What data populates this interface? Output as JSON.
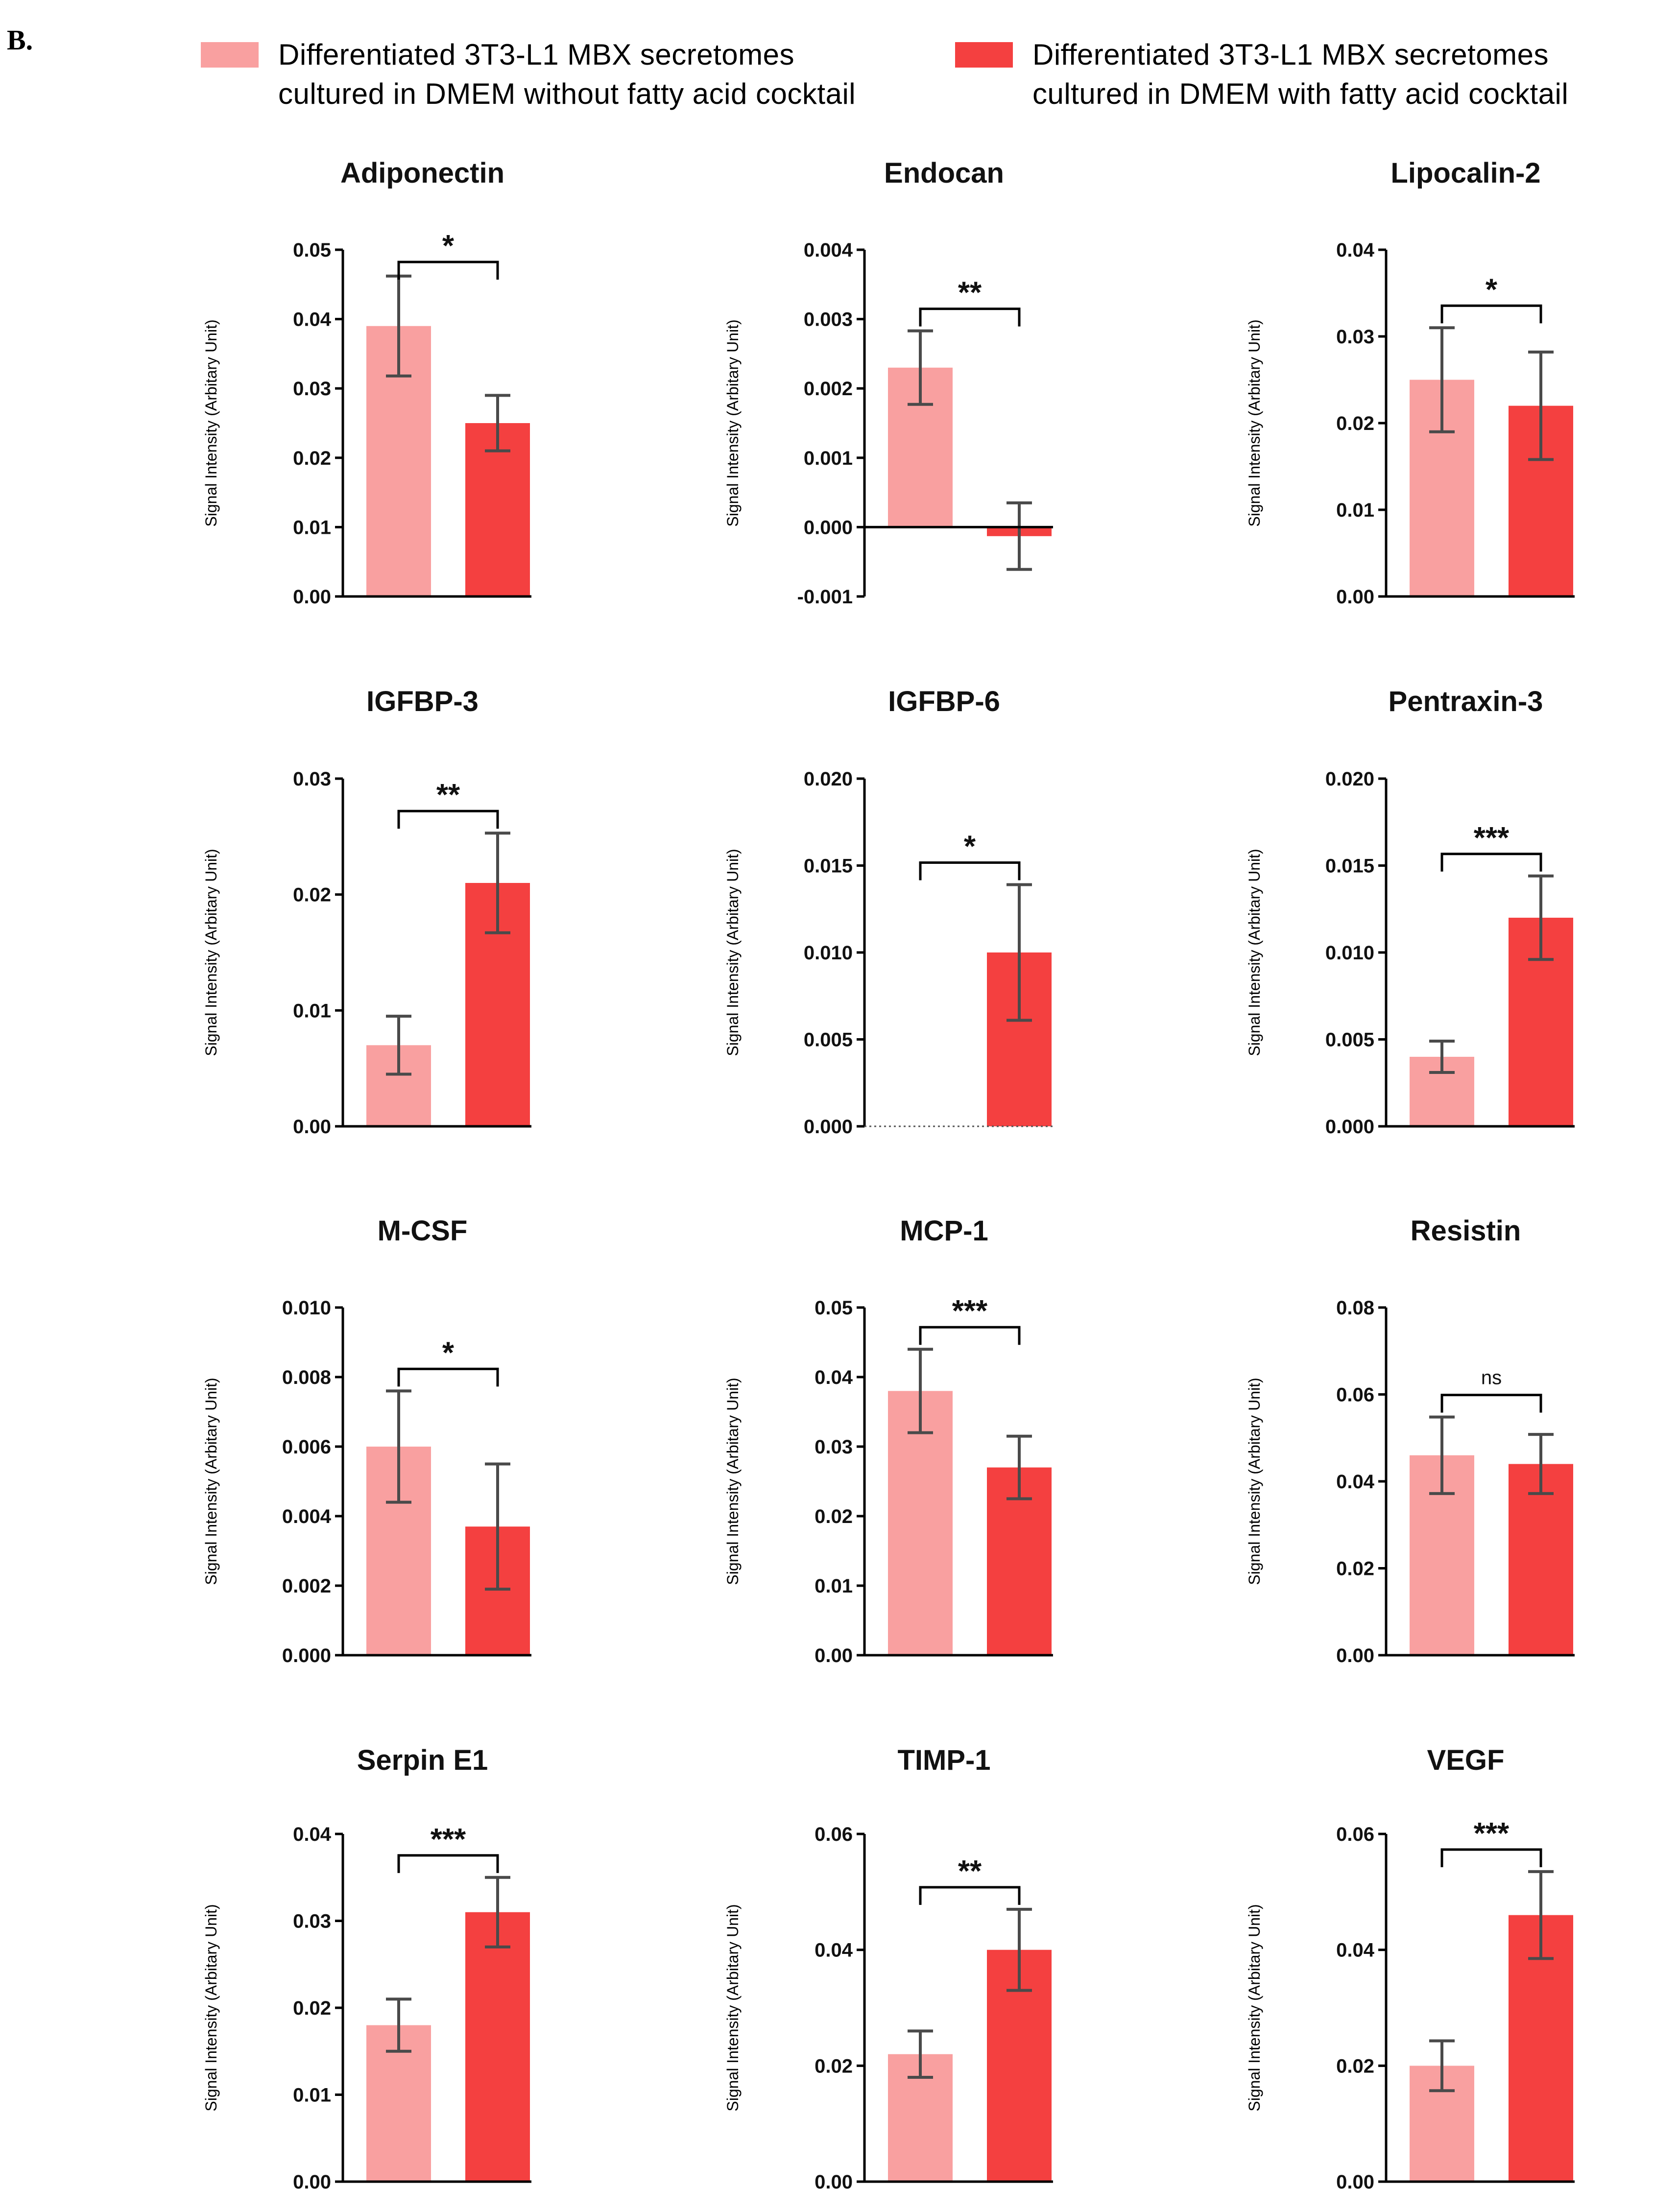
{
  "panel_label": "B.",
  "legend": [
    {
      "lines": [
        "Differentiated 3T3-L1 MBX secretomes",
        "cultured in DMEM without fatty acid cocktail"
      ],
      "color": "#f9a0a0"
    },
    {
      "lines": [
        "Differentiated 3T3-L1 MBX secretomes",
        "cultured in DMEM with fatty acid cocktail"
      ],
      "color": "#f44040"
    }
  ],
  "colors": {
    "without": "#f9a0a0",
    "with": "#f44040",
    "error_bar": "#4a4a4a"
  },
  "chart_data": [
    {
      "type": "bar",
      "title": "Adiponectin",
      "ylabel": "Signal Intensity (Arbitary Unit)",
      "categories": [
        "without fatty acid cocktail",
        "with fatty acid cocktail"
      ],
      "values": [
        0.039,
        0.025
      ],
      "errors": [
        0.0072,
        0.004
      ],
      "ylim": [
        0,
        0.05
      ],
      "ticks": [
        0,
        0.01,
        0.02,
        0.03,
        0.04,
        0.05
      ],
      "tick_labels": [
        "0.00",
        "0.01",
        "0.02",
        "0.03",
        "0.04",
        "0.05"
      ],
      "significance": "*"
    },
    {
      "type": "bar",
      "title": "Endocan",
      "ylabel": "Signal Intensity (Arbitary Unit)",
      "categories": [
        "without fatty acid cocktail",
        "with fatty acid cocktail"
      ],
      "values": [
        0.0023,
        -0.00013
      ],
      "errors": [
        0.00053,
        0.00048
      ],
      "ylim": [
        -0.001,
        0.004
      ],
      "ticks": [
        -0.001,
        0,
        0.001,
        0.002,
        0.003,
        0.004
      ],
      "tick_labels": [
        "-0.001",
        "0.000",
        "0.001",
        "0.002",
        "0.003",
        "0.004"
      ],
      "significance": "**"
    },
    {
      "type": "bar",
      "title": "Lipocalin-2",
      "ylabel": "Signal Intensity (Arbitary Unit)",
      "categories": [
        "without fatty acid cocktail",
        "with fatty acid cocktail"
      ],
      "values": [
        0.025,
        0.022
      ],
      "errors": [
        0.006,
        0.0062
      ],
      "ylim": [
        0,
        0.04
      ],
      "ticks": [
        0,
        0.01,
        0.02,
        0.03,
        0.04
      ],
      "tick_labels": [
        "0.00",
        "0.01",
        "0.02",
        "0.03",
        "0.04"
      ],
      "significance": "*"
    },
    {
      "type": "bar",
      "title": "IGFBP-3",
      "ylabel": "Signal Intensity (Arbitary Unit)",
      "categories": [
        "without fatty acid cocktail",
        "with fatty acid cocktail"
      ],
      "values": [
        0.007,
        0.021
      ],
      "errors": [
        0.0025,
        0.0043
      ],
      "ylim": [
        0,
        0.03
      ],
      "ticks": [
        0,
        0.01,
        0.02,
        0.03
      ],
      "tick_labels": [
        "0.00",
        "0.01",
        "0.02",
        "0.03"
      ],
      "significance": "**"
    },
    {
      "type": "bar",
      "title": "IGFBP-6",
      "ylabel": "Signal Intensity (Arbitary Unit)",
      "categories": [
        "without fatty acid cocktail",
        "with fatty acid cocktail"
      ],
      "values": [
        0,
        0.01
      ],
      "errors": [
        0,
        0.0039
      ],
      "ylim": [
        0,
        0.02
      ],
      "ticks": [
        0,
        0.005,
        0.01,
        0.015,
        0.02
      ],
      "tick_labels": [
        "0.000",
        "0.005",
        "0.010",
        "0.015",
        "0.020"
      ],
      "significance": "*"
    },
    {
      "type": "bar",
      "title": "Pentraxin-3",
      "ylabel": "Signal Intensity (Arbitary Unit)",
      "categories": [
        "without fatty acid cocktail",
        "with fatty acid cocktail"
      ],
      "values": [
        0.004,
        0.012
      ],
      "errors": [
        0.0009,
        0.0024
      ],
      "ylim": [
        0,
        0.02
      ],
      "ticks": [
        0,
        0.005,
        0.01,
        0.015,
        0.02
      ],
      "tick_labels": [
        "0.000",
        "0.005",
        "0.010",
        "0.015",
        "0.020"
      ],
      "significance": "***"
    },
    {
      "type": "bar",
      "title": "M-CSF",
      "ylabel": "Signal Intensity (Arbitary Unit)",
      "categories": [
        "without fatty acid cocktail",
        "with fatty acid cocktail"
      ],
      "values": [
        0.006,
        0.0037
      ],
      "errors": [
        0.0016,
        0.0018
      ],
      "ylim": [
        0,
        0.01
      ],
      "ticks": [
        0,
        0.002,
        0.004,
        0.006,
        0.008,
        0.01
      ],
      "tick_labels": [
        "0.000",
        "0.002",
        "0.004",
        "0.006",
        "0.008",
        "0.010"
      ],
      "significance": "*"
    },
    {
      "type": "bar",
      "title": "MCP-1",
      "ylabel": "Signal Intensity (Arbitary Unit)",
      "categories": [
        "without fatty acid cocktail",
        "with fatty acid cocktail"
      ],
      "values": [
        0.038,
        0.027
      ],
      "errors": [
        0.006,
        0.0045
      ],
      "ylim": [
        0,
        0.05
      ],
      "ticks": [
        0,
        0.01,
        0.02,
        0.03,
        0.04,
        0.05
      ],
      "tick_labels": [
        "0.00",
        "0.01",
        "0.02",
        "0.03",
        "0.04",
        "0.05"
      ],
      "significance": "***"
    },
    {
      "type": "bar",
      "title": "Resistin",
      "ylabel": "Signal Intensity (Arbitary Unit)",
      "categories": [
        "without fatty acid cocktail",
        "with fatty acid cocktail"
      ],
      "values": [
        0.046,
        0.044
      ],
      "errors": [
        0.0088,
        0.0068
      ],
      "ylim": [
        0,
        0.08
      ],
      "ticks": [
        0,
        0.02,
        0.04,
        0.06,
        0.08
      ],
      "tick_labels": [
        "0.00",
        "0.02",
        "0.04",
        "0.06",
        "0.08"
      ],
      "significance": "ns"
    },
    {
      "type": "bar",
      "title": "Serpin E1",
      "ylabel": "Signal Intensity (Arbitary Unit)",
      "categories": [
        "without fatty acid cocktail",
        "with fatty acid cocktail"
      ],
      "values": [
        0.018,
        0.031
      ],
      "errors": [
        0.003,
        0.004
      ],
      "ylim": [
        0,
        0.04
      ],
      "ticks": [
        0,
        0.01,
        0.02,
        0.03,
        0.04
      ],
      "tick_labels": [
        "0.00",
        "0.01",
        "0.02",
        "0.03",
        "0.04"
      ],
      "significance": "***"
    },
    {
      "type": "bar",
      "title": "TIMP-1",
      "ylabel": "Signal Intensity (Arbitary Unit)",
      "categories": [
        "without fatty acid cocktail",
        "with fatty acid cocktail"
      ],
      "values": [
        0.022,
        0.04
      ],
      "errors": [
        0.004,
        0.007
      ],
      "ylim": [
        0,
        0.06
      ],
      "ticks": [
        0,
        0.02,
        0.04,
        0.06
      ],
      "tick_labels": [
        "0.00",
        "0.02",
        "0.04",
        "0.06"
      ],
      "significance": "**"
    },
    {
      "type": "bar",
      "title": "VEGF",
      "ylabel": "Signal Intensity (Arbitary Unit)",
      "categories": [
        "without fatty acid cocktail",
        "with fatty acid cocktail"
      ],
      "values": [
        0.02,
        0.046
      ],
      "errors": [
        0.0043,
        0.0075
      ],
      "ylim": [
        0,
        0.06
      ],
      "ticks": [
        0,
        0.02,
        0.04,
        0.06
      ],
      "tick_labels": [
        "0.00",
        "0.02",
        "0.04",
        "0.06"
      ],
      "significance": "***"
    }
  ]
}
